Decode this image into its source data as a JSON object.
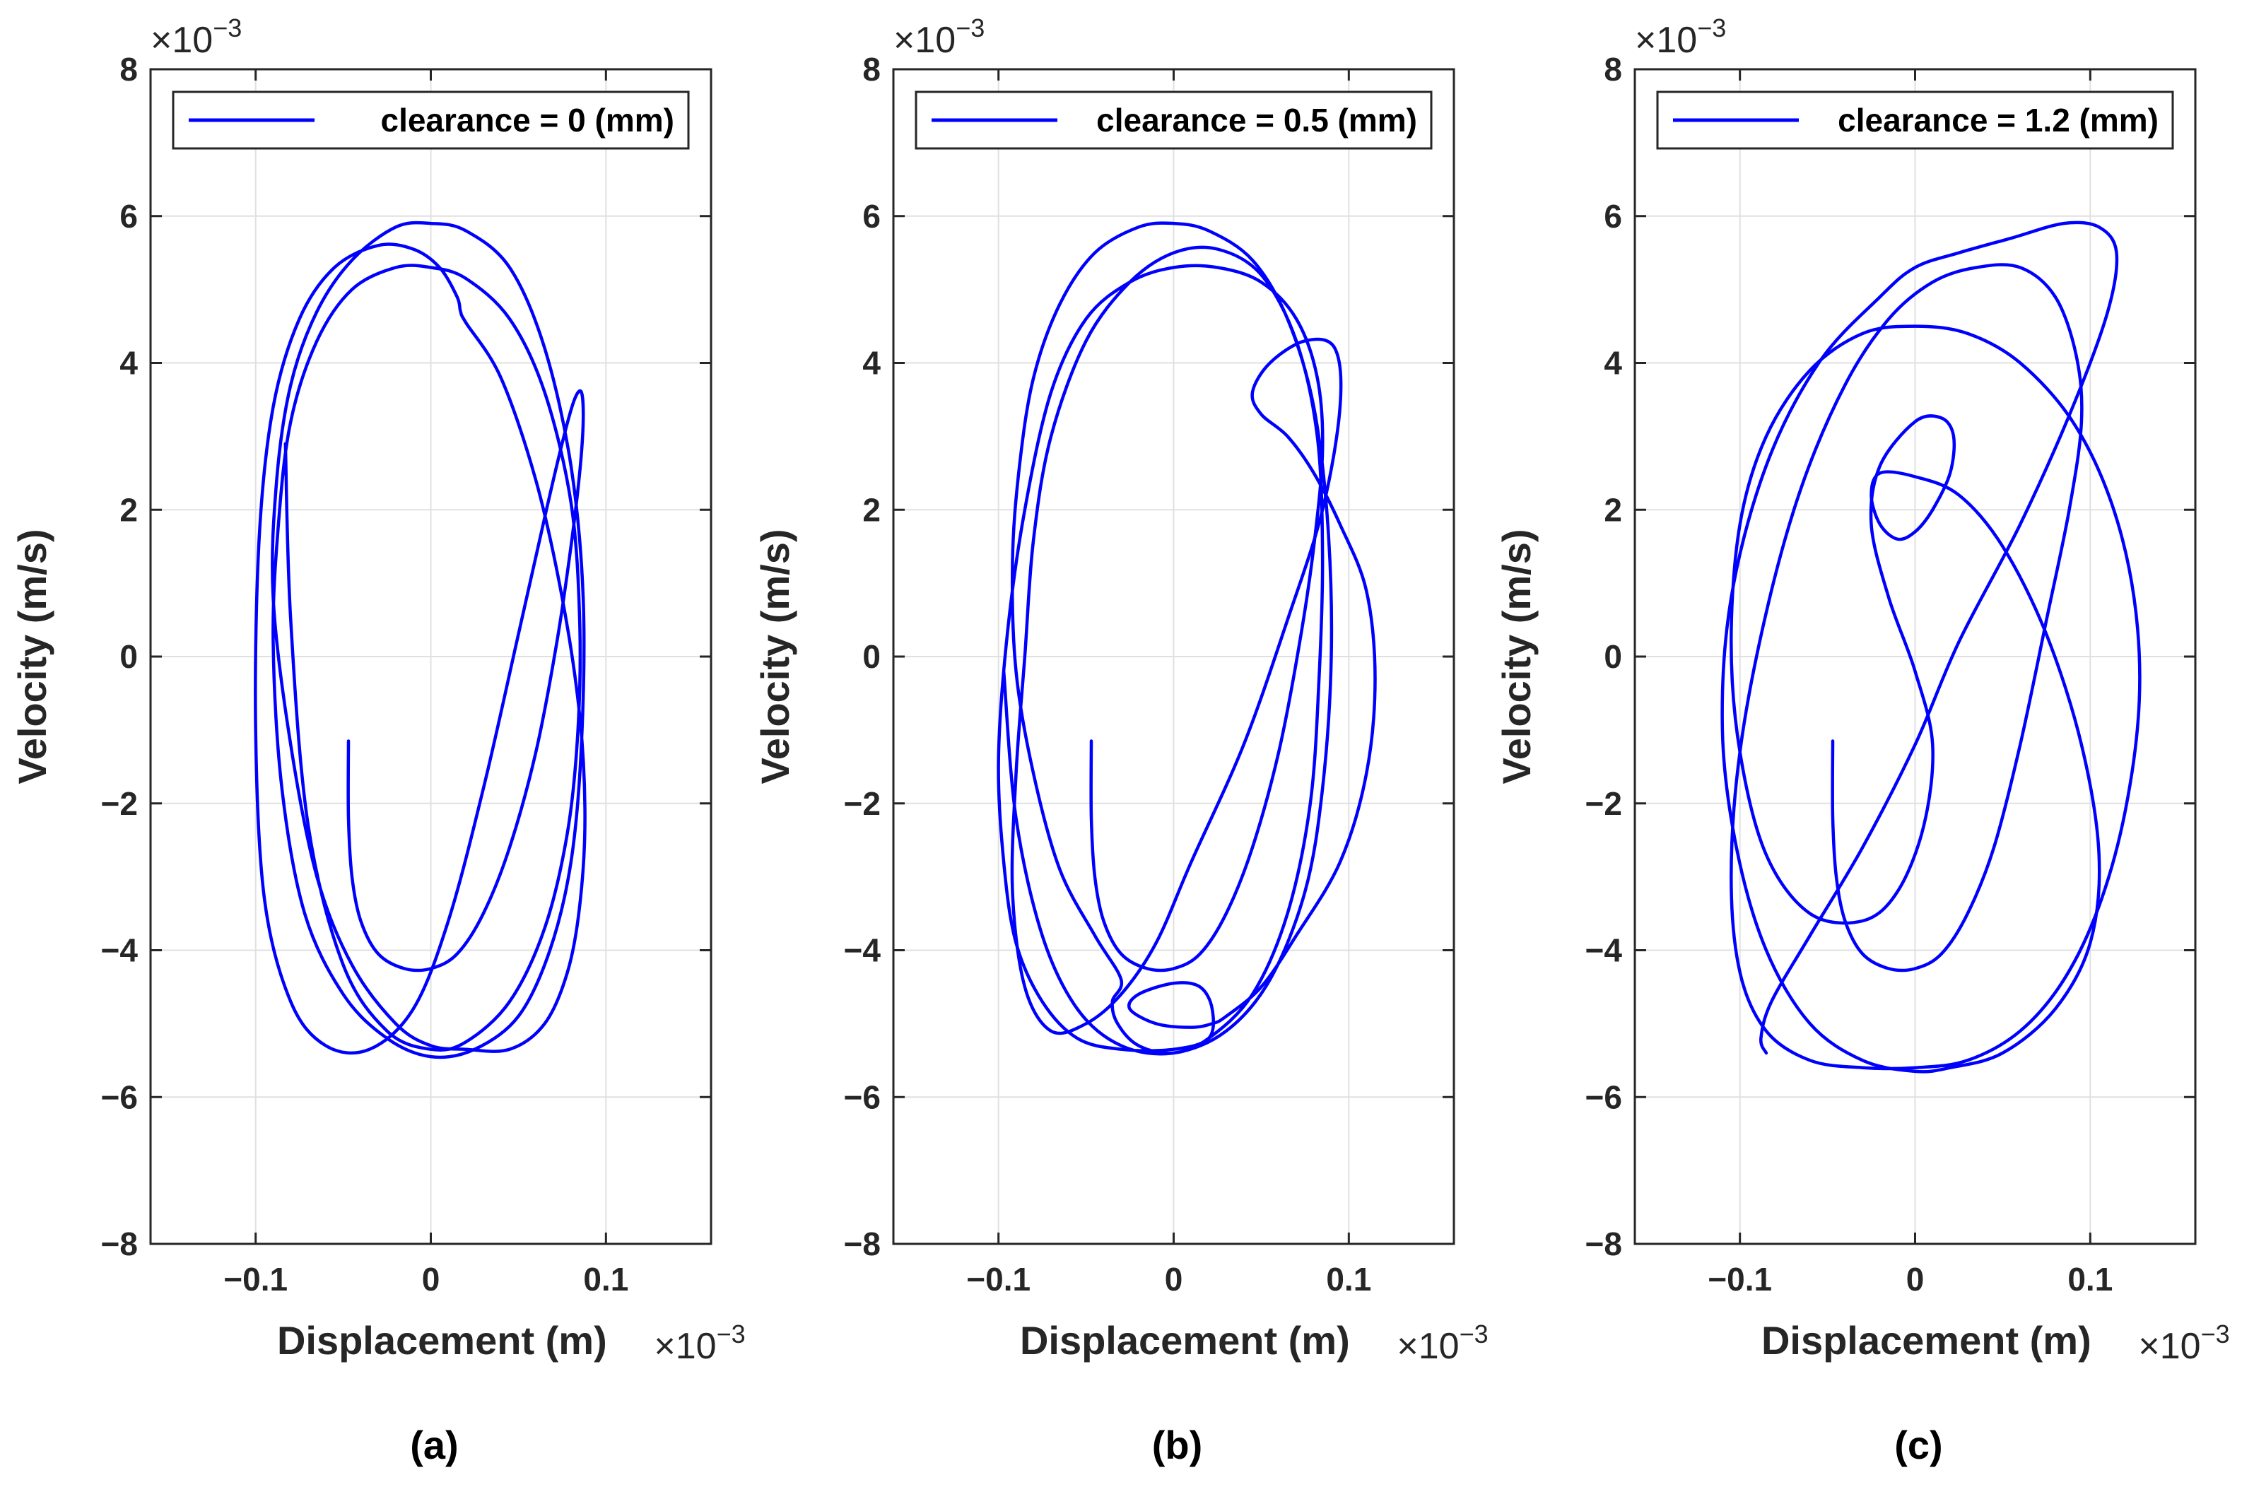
{
  "chart_data": [
    {
      "type": "line",
      "subplot_label": "(a)",
      "xlabel": "Displacement (m)",
      "ylabel": "Velocity (m/s)",
      "x_multiplier": "×10",
      "x_multiplier_exp": "−3",
      "y_multiplier": "×10",
      "y_multiplier_exp": "−3",
      "xlim": [
        -0.16,
        0.16
      ],
      "ylim": [
        -8,
        8
      ],
      "xticks": [
        -0.1,
        0,
        0.1
      ],
      "xtick_labels": [
        "−0.1",
        "0",
        "0.1"
      ],
      "yticks": [
        -8,
        -6,
        -4,
        -2,
        0,
        2,
        4,
        6,
        8
      ],
      "ytick_labels": [
        "−8",
        "−6",
        "−4",
        "−2",
        "0",
        "2",
        "4",
        "6",
        "8"
      ],
      "grid": true,
      "legend_position": "top",
      "series": [
        {
          "name": "clearance = 0 (mm)",
          "color": "#0000ff",
          "x": [
            -0.047,
            -0.047,
            -0.045,
            -0.04,
            -0.03,
            -0.015,
            0,
            0.015,
            0.03,
            0.045,
            0.06,
            0.072,
            0.08,
            0.085,
            0.087,
            0.086,
            0.082,
            0.076,
            0.066,
            0.05,
            0.03,
            0.01,
            -0.01,
            -0.035,
            -0.06,
            -0.08,
            -0.095,
            -0.1,
            -0.098,
            -0.09,
            -0.075,
            -0.055,
            -0.03,
            -0.01,
            0.005,
            0.015,
            0.017,
            0.02,
            0.04,
            0.06,
            0.075,
            0.085,
            0.088,
            0.085,
            0.078,
            0.065,
            0.045,
            0.02,
            0,
            -0.02,
            -0.045,
            -0.065,
            -0.08,
            -0.09,
            -0.088,
            -0.08,
            -0.065,
            -0.045,
            -0.02,
            0,
            0.02,
            0.045,
            0.065,
            0.08,
            0.087,
            0.086,
            0.08,
            0.068,
            0.05,
            0.025,
            0,
            -0.025,
            -0.05,
            -0.072,
            -0.085,
            -0.09,
            -0.087,
            -0.08,
            -0.065,
            -0.045,
            -0.02,
            0,
            0.02,
            0.045,
            0.065,
            0.08,
            0.085,
            0.084,
            0.078,
            0.065,
            0.045,
            0.02,
            0,
            -0.025,
            -0.05,
            -0.07,
            -0.08,
            -0.083
          ],
          "y": [
            -1.15,
            -2.2,
            -3.0,
            -3.6,
            -4.05,
            -4.25,
            -4.25,
            -4.05,
            -3.5,
            -2.6,
            -1.3,
            0.2,
            1.5,
            2.5,
            3.2,
            3.6,
            3.5,
            3.0,
            2.0,
            0.3,
            -1.8,
            -3.6,
            -4.8,
            -5.35,
            -5.3,
            -4.7,
            -3.3,
            -1.0,
            1.6,
            3.4,
            4.6,
            5.3,
            5.6,
            5.55,
            5.3,
            4.9,
            4.7,
            4.55,
            3.8,
            2.4,
            0.8,
            -0.8,
            -2.2,
            -3.4,
            -4.3,
            -5.0,
            -5.35,
            -5.35,
            -5.3,
            -5.0,
            -4.2,
            -3.0,
            -1.2,
            0.8,
            2.4,
            3.7,
            4.7,
            5.4,
            5.85,
            5.9,
            5.8,
            5.3,
            4.2,
            2.6,
            0.8,
            -1.2,
            -2.8,
            -4.0,
            -4.9,
            -5.35,
            -5.45,
            -5.2,
            -4.6,
            -3.5,
            -1.8,
            0.2,
            1.8,
            3.2,
            4.3,
            5.0,
            5.3,
            5.3,
            5.15,
            4.6,
            3.6,
            2.1,
            0.5,
            -1.0,
            -2.4,
            -3.7,
            -4.7,
            -5.25,
            -5.35,
            -5.1,
            -4.2,
            -2.3,
            0.5,
            2.9
          ]
        }
      ]
    },
    {
      "type": "line",
      "subplot_label": "(b)",
      "xlabel": "Displacement (m)",
      "ylabel": "Velocity (m/s)",
      "x_multiplier": "×10",
      "x_multiplier_exp": "−3",
      "y_multiplier": "×10",
      "y_multiplier_exp": "−3",
      "xlim": [
        -0.16,
        0.16
      ],
      "ylim": [
        -8,
        8
      ],
      "xticks": [
        -0.1,
        0,
        0.1
      ],
      "xtick_labels": [
        "−0.1",
        "0",
        "0.1"
      ],
      "yticks": [
        -8,
        -6,
        -4,
        -2,
        0,
        2,
        4,
        6,
        8
      ],
      "ytick_labels": [
        "−8",
        "−6",
        "−4",
        "−2",
        "0",
        "2",
        "4",
        "6",
        "8"
      ],
      "grid": true,
      "legend_position": "top",
      "series": [
        {
          "name": "clearance = 0.5 (mm)",
          "color": "#0000ff",
          "x": [
            -0.047,
            -0.047,
            -0.045,
            -0.04,
            -0.03,
            -0.015,
            0,
            0.015,
            0.03,
            0.045,
            0.06,
            0.072,
            0.08,
            0.085,
            0.082,
            0.07,
            0.05,
            0.025,
            0,
            -0.025,
            -0.05,
            -0.07,
            -0.085,
            -0.095,
            -0.1,
            -0.097,
            -0.09,
            -0.075,
            -0.055,
            -0.03,
            0,
            0.02,
            0.022,
            0.015,
            0,
            -0.02,
            -0.025,
            -0.01,
            0.01,
            0.022,
            0.03,
            0.05,
            0.07,
            0.095,
            0.11,
            0.115,
            0.11,
            0.095,
            0.08,
            0.065,
            0.05,
            0.045,
            0.055,
            0.075,
            0.092,
            0.095,
            0.085,
            0.065,
            0.04,
            0.01,
            -0.01,
            -0.03,
            -0.05,
            -0.07,
            -0.085,
            -0.092,
            -0.09,
            -0.085,
            -0.08,
            -0.07,
            -0.05,
            -0.025,
            0,
            0.025,
            0.05,
            0.07,
            0.082,
            0.085,
            0.083,
            0.078,
            0.065,
            0.045,
            0.02,
            0,
            -0.02,
            -0.032,
            -0.035,
            -0.03,
            -0.045,
            -0.065,
            -0.08,
            -0.09,
            -0.092,
            -0.088,
            -0.08,
            -0.065,
            -0.045,
            -0.02,
            0,
            0.02,
            0.045,
            0.065,
            0.08,
            0.088,
            0.09,
            0.085,
            0.075,
            0.055,
            0.03,
            0,
            -0.03,
            -0.055,
            -0.075,
            -0.09,
            -0.097
          ],
          "y": [
            -1.15,
            -2.2,
            -3.0,
            -3.6,
            -4.05,
            -4.25,
            -4.25,
            -4.05,
            -3.5,
            -2.6,
            -1.3,
            0.2,
            1.5,
            2.8,
            3.8,
            4.6,
            5.1,
            5.3,
            5.3,
            5.1,
            4.6,
            3.6,
            2.0,
            0.3,
            -1.4,
            -2.8,
            -3.9,
            -4.7,
            -5.2,
            -5.35,
            -5.35,
            -5.2,
            -4.8,
            -4.5,
            -4.45,
            -4.6,
            -4.8,
            -5.0,
            -5.05,
            -5.0,
            -4.9,
            -4.5,
            -3.8,
            -2.8,
            -1.6,
            -0.3,
            0.9,
            1.8,
            2.5,
            3.0,
            3.3,
            3.6,
            4.0,
            4.3,
            4.2,
            3.4,
            2.0,
            0.5,
            -1.2,
            -2.8,
            -3.9,
            -4.6,
            -5.0,
            -5.1,
            -4.5,
            -3.2,
            -1.6,
            0.0,
            1.6,
            3.0,
            4.3,
            5.1,
            5.5,
            5.55,
            5.2,
            4.3,
            3.0,
            1.4,
            -0.3,
            -2.0,
            -3.5,
            -4.6,
            -5.2,
            -5.4,
            -5.3,
            -5.0,
            -4.7,
            -4.4,
            -3.8,
            -2.9,
            -1.6,
            -0.2,
            1.3,
            2.6,
            3.8,
            4.8,
            5.5,
            5.85,
            5.9,
            5.8,
            5.4,
            4.6,
            3.4,
            1.8,
            0.0,
            -1.8,
            -3.2,
            -4.4,
            -5.1,
            -5.4,
            -5.3,
            -4.8,
            -3.8,
            -2.2,
            -0.2
          ]
        }
      ]
    },
    {
      "type": "line",
      "subplot_label": "(c)",
      "xlabel": "Displacement (m)",
      "ylabel": "Velocity (m/s)",
      "x_multiplier": "×10",
      "x_multiplier_exp": "−3",
      "y_multiplier": "×10",
      "y_multiplier_exp": "−3",
      "xlim": [
        -0.16,
        0.16
      ],
      "ylim": [
        -8,
        8
      ],
      "xticks": [
        -0.1,
        0,
        0.1
      ],
      "xtick_labels": [
        "−0.1",
        "0",
        "0.1"
      ],
      "yticks": [
        -8,
        -6,
        -4,
        -2,
        0,
        2,
        4,
        6,
        8
      ],
      "ytick_labels": [
        "−8",
        "−6",
        "−4",
        "−2",
        "0",
        "2",
        "4",
        "6",
        "8"
      ],
      "grid": true,
      "legend_position": "top",
      "series": [
        {
          "name": "clearance = 1.2 (mm)",
          "color": "#0000ff",
          "x": [
            -0.047,
            -0.047,
            -0.045,
            -0.04,
            -0.03,
            -0.015,
            0,
            0.015,
            0.03,
            0.045,
            0.06,
            0.075,
            0.088,
            0.095,
            0.092,
            0.08,
            0.06,
            0.035,
            0.01,
            -0.015,
            -0.04,
            -0.065,
            -0.085,
            -0.1,
            -0.105,
            -0.1,
            -0.085,
            -0.06,
            -0.03,
            0,
            0.03,
            0.06,
            0.085,
            0.105,
            0.12,
            0.128,
            0.125,
            0.112,
            0.09,
            0.06,
            0.03,
            0,
            -0.03,
            -0.06,
            -0.085,
            -0.1,
            -0.105,
            -0.1,
            -0.085,
            -0.06,
            -0.03,
            -0.01,
            0.005,
            0.01,
            0.0,
            -0.015,
            -0.025,
            -0.02,
            0,
            0.015,
            0.022,
            0.02,
            0.01,
            0,
            -0.01,
            -0.02,
            -0.025,
            -0.02,
            0,
            0.025,
            0.05,
            0.075,
            0.095,
            0.105,
            0.1,
            0.08,
            0.05,
            0.02,
            0,
            -0.03,
            -0.06,
            -0.085,
            -0.102,
            -0.11,
            -0.105,
            -0.085,
            -0.055,
            -0.02,
            0,
            0.025,
            0.055,
            0.085,
            0.105,
            0.115,
            0.11,
            0.09,
            0.06,
            0.025,
            0,
            -0.03,
            -0.06,
            -0.082,
            -0.088,
            -0.085
          ],
          "y": [
            -1.15,
            -2.2,
            -3.0,
            -3.6,
            -4.05,
            -4.25,
            -4.25,
            -4.05,
            -3.5,
            -2.6,
            -1.2,
            0.5,
            2.0,
            3.2,
            4.1,
            4.9,
            5.3,
            5.3,
            5.1,
            4.6,
            3.7,
            2.3,
            0.6,
            -1.3,
            -3.0,
            -4.3,
            -5.1,
            -5.5,
            -5.6,
            -5.6,
            -5.5,
            -5.1,
            -4.4,
            -3.4,
            -2.1,
            -0.6,
            0.8,
            2.1,
            3.2,
            4.0,
            4.4,
            4.5,
            4.4,
            3.9,
            3.0,
            1.8,
            0.2,
            -1.3,
            -2.7,
            -3.5,
            -3.6,
            -3.2,
            -2.3,
            -1.2,
            -0.2,
            0.8,
            1.8,
            2.6,
            3.2,
            3.25,
            3.0,
            2.5,
            2.0,
            1.7,
            1.6,
            1.8,
            2.2,
            2.5,
            2.45,
            2.2,
            1.5,
            0.3,
            -1.2,
            -2.7,
            -3.9,
            -4.8,
            -5.4,
            -5.6,
            -5.65,
            -5.5,
            -5.0,
            -4.0,
            -2.6,
            -1.0,
            0.8,
            2.6,
            4.0,
            4.9,
            5.3,
            5.5,
            5.7,
            5.9,
            5.85,
            5.5,
            4.7,
            3.4,
            1.8,
            0.2,
            -1.2,
            -2.6,
            -3.8,
            -4.7,
            -5.2,
            -5.4
          ]
        }
      ]
    }
  ]
}
